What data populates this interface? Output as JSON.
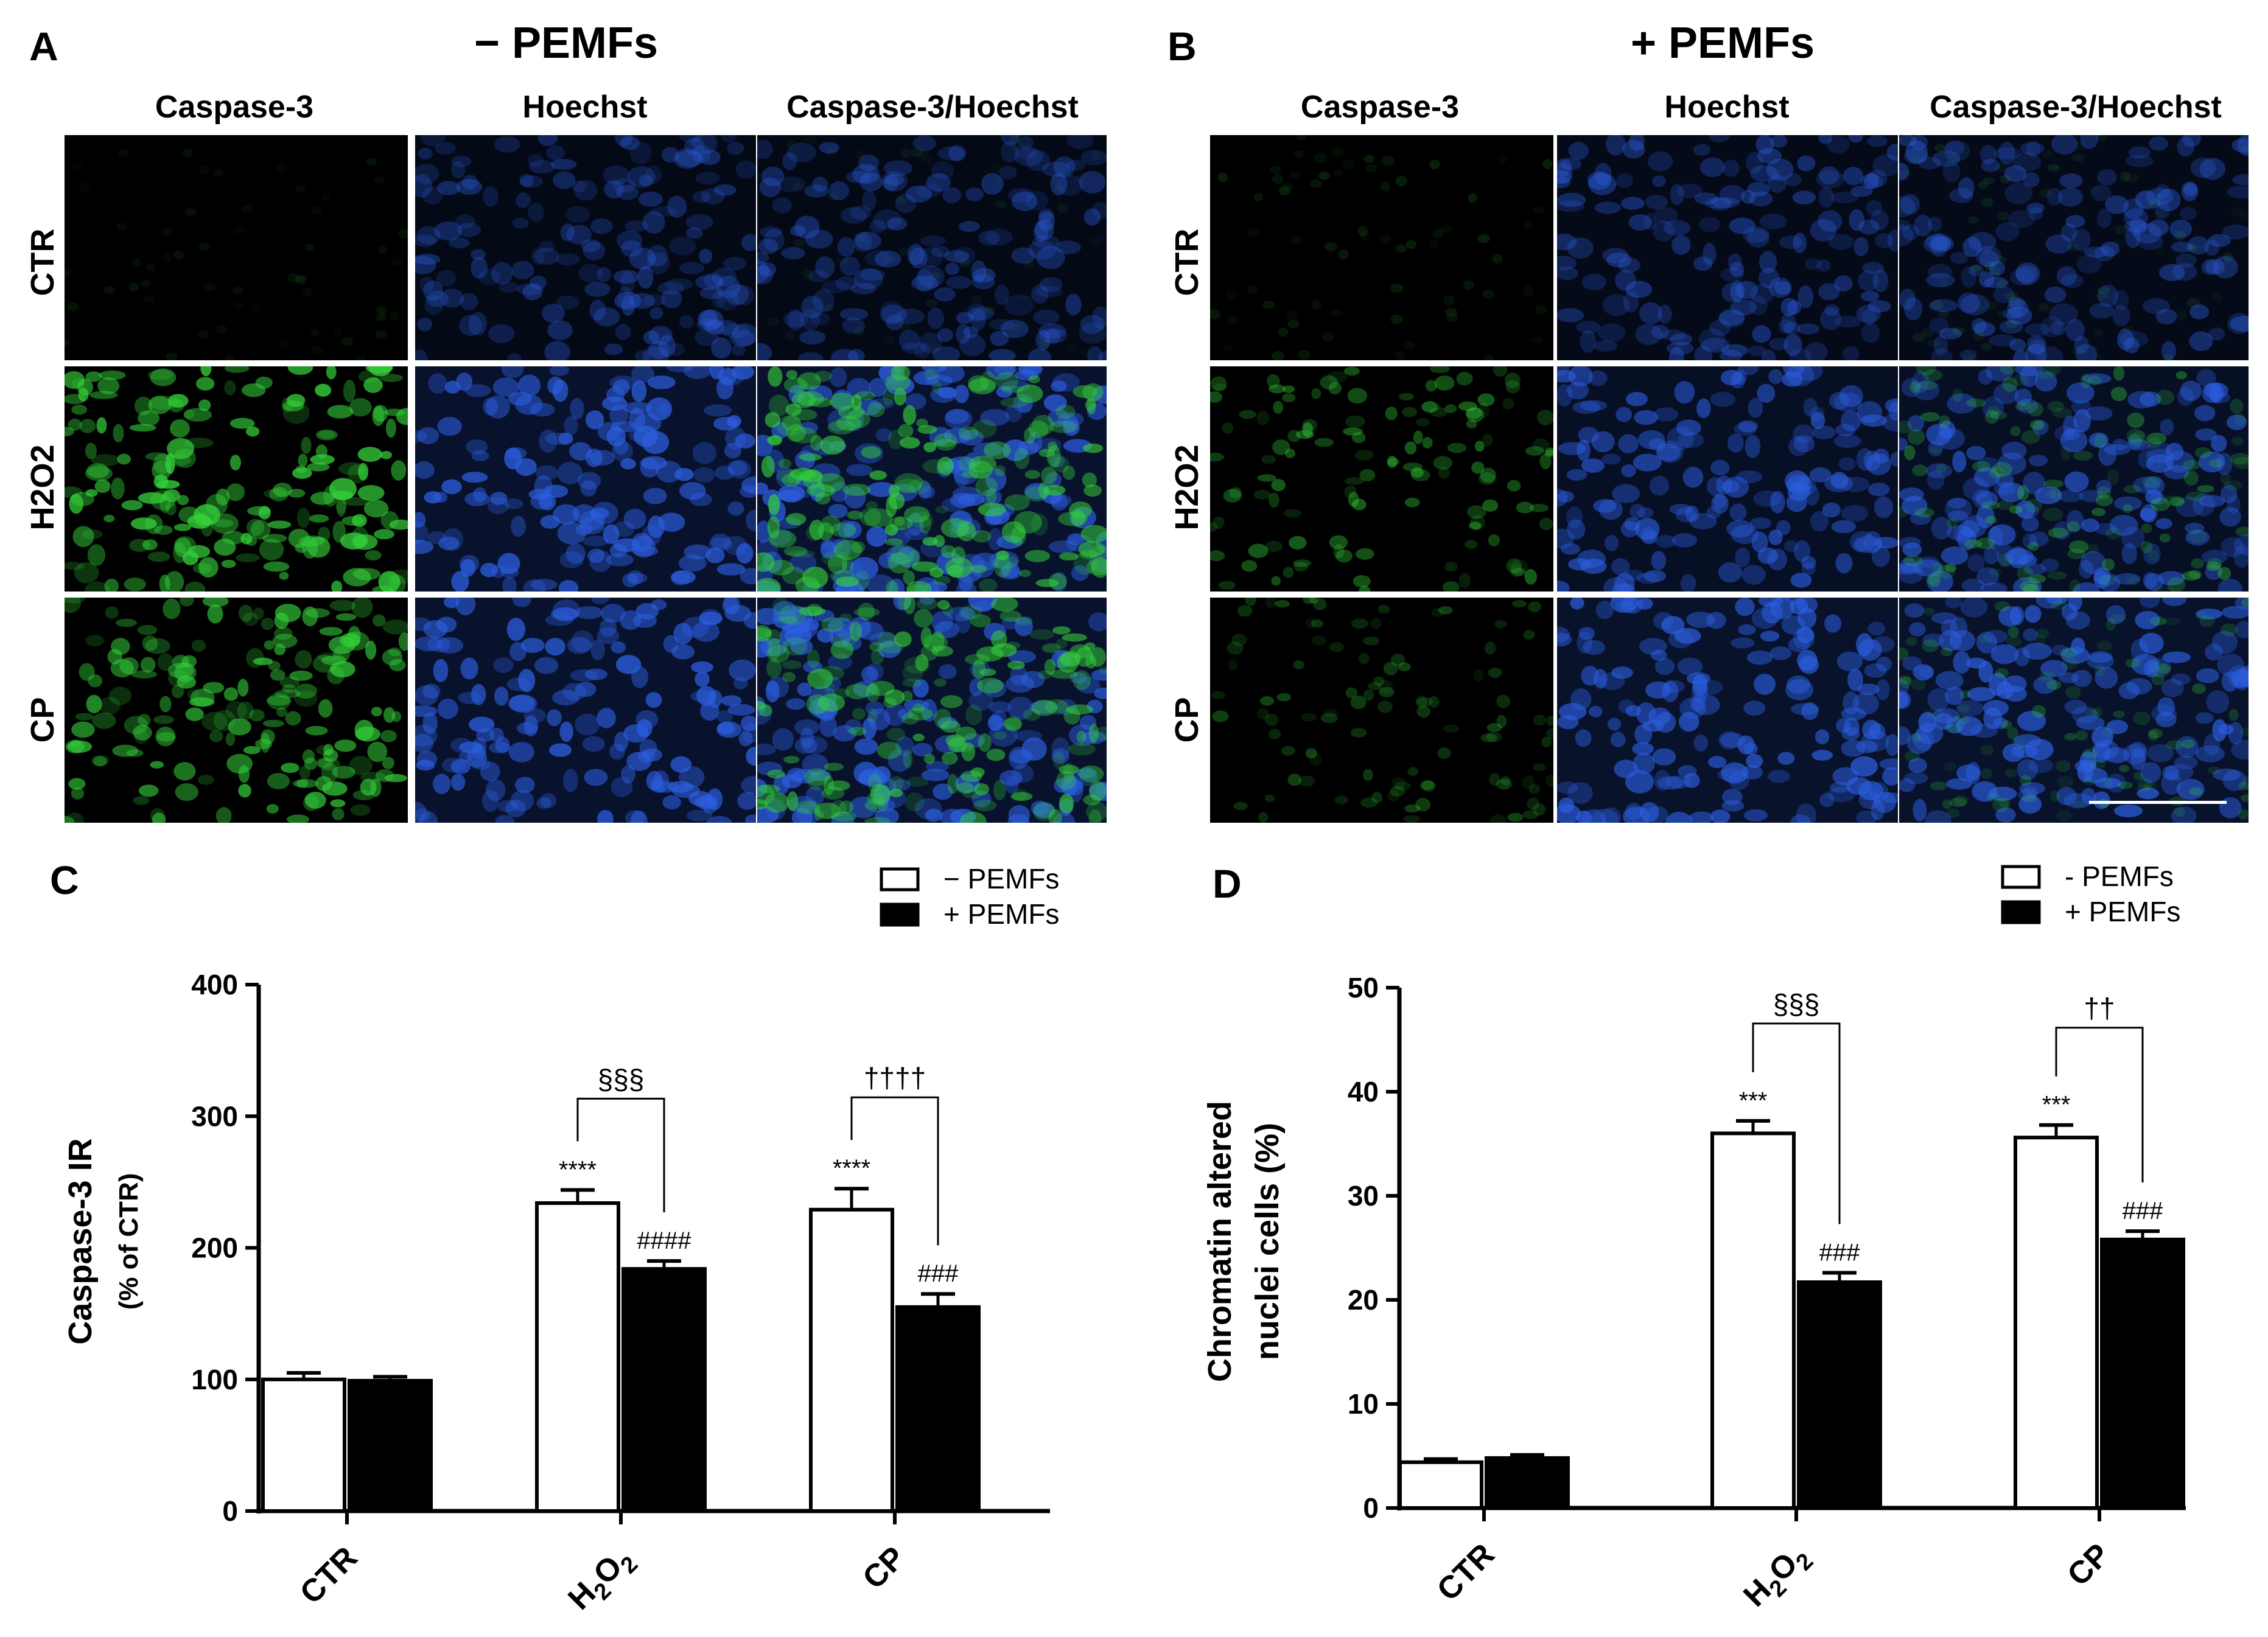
{
  "panels": {
    "A": {
      "letter": "A",
      "title": "− PEMFs"
    },
    "B": {
      "letter": "B",
      "title": "+ PEMFs"
    },
    "C": {
      "letter": "C"
    },
    "D": {
      "letter": "D"
    }
  },
  "micrograph_columns": [
    "Caspase-3",
    "Hoechst",
    "Caspase-3/Hoechst"
  ],
  "micrograph_rows": [
    "CTR",
    "H2O2",
    "CP"
  ],
  "colors": {
    "caspase": "#34d13a",
    "hoechst": "#2c5ee0",
    "background": "#000000",
    "bar_open": "#ffffff",
    "bar_filled": "#000000"
  },
  "chart_data": [
    {
      "type": "bar",
      "panel": "C",
      "categories": [
        "CTR",
        "H2O2",
        "CP"
      ],
      "series": [
        {
          "name": "− PEMFs",
          "values": [
            100,
            234,
            229
          ],
          "errors": [
            5,
            10,
            16
          ]
        },
        {
          "name": "+ PEMFs",
          "values": [
            99,
            184,
            155
          ],
          "errors": [
            3,
            6,
            10
          ]
        }
      ],
      "ylabel": "Caspase-3 IR",
      "ylabel_sub": "(% of CTR)",
      "ylim": [
        0,
        400
      ],
      "yticks": [
        0,
        100,
        200,
        300,
        400
      ],
      "legend_position": "top-right",
      "annotations": {
        "above_minus": [
          "",
          "****",
          "****"
        ],
        "above_plus": [
          "",
          "####",
          "###"
        ],
        "brackets": [
          "",
          "§§§",
          "††††"
        ]
      }
    },
    {
      "type": "bar",
      "panel": "D",
      "categories": [
        "CTR",
        "H2O2",
        "CP"
      ],
      "series": [
        {
          "name": "- PEMFs",
          "values": [
            4.4,
            36,
            35.6
          ],
          "errors": [
            0.3,
            1.2,
            1.2
          ]
        },
        {
          "name": "+ PEMFs",
          "values": [
            4.8,
            21.7,
            25.8
          ],
          "errors": [
            0.3,
            0.9,
            0.8
          ]
        }
      ],
      "ylabel": "Chromatin altered",
      "ylabel_sub": "nuclei cells (%)",
      "ylim": [
        0,
        50
      ],
      "yticks": [
        0,
        10,
        20,
        30,
        40,
        50
      ],
      "legend_position": "top-right",
      "annotations": {
        "above_minus": [
          "",
          "***",
          "***"
        ],
        "above_plus": [
          "",
          "###",
          "###"
        ],
        "brackets": [
          "",
          "§§§",
          "††"
        ]
      }
    }
  ]
}
